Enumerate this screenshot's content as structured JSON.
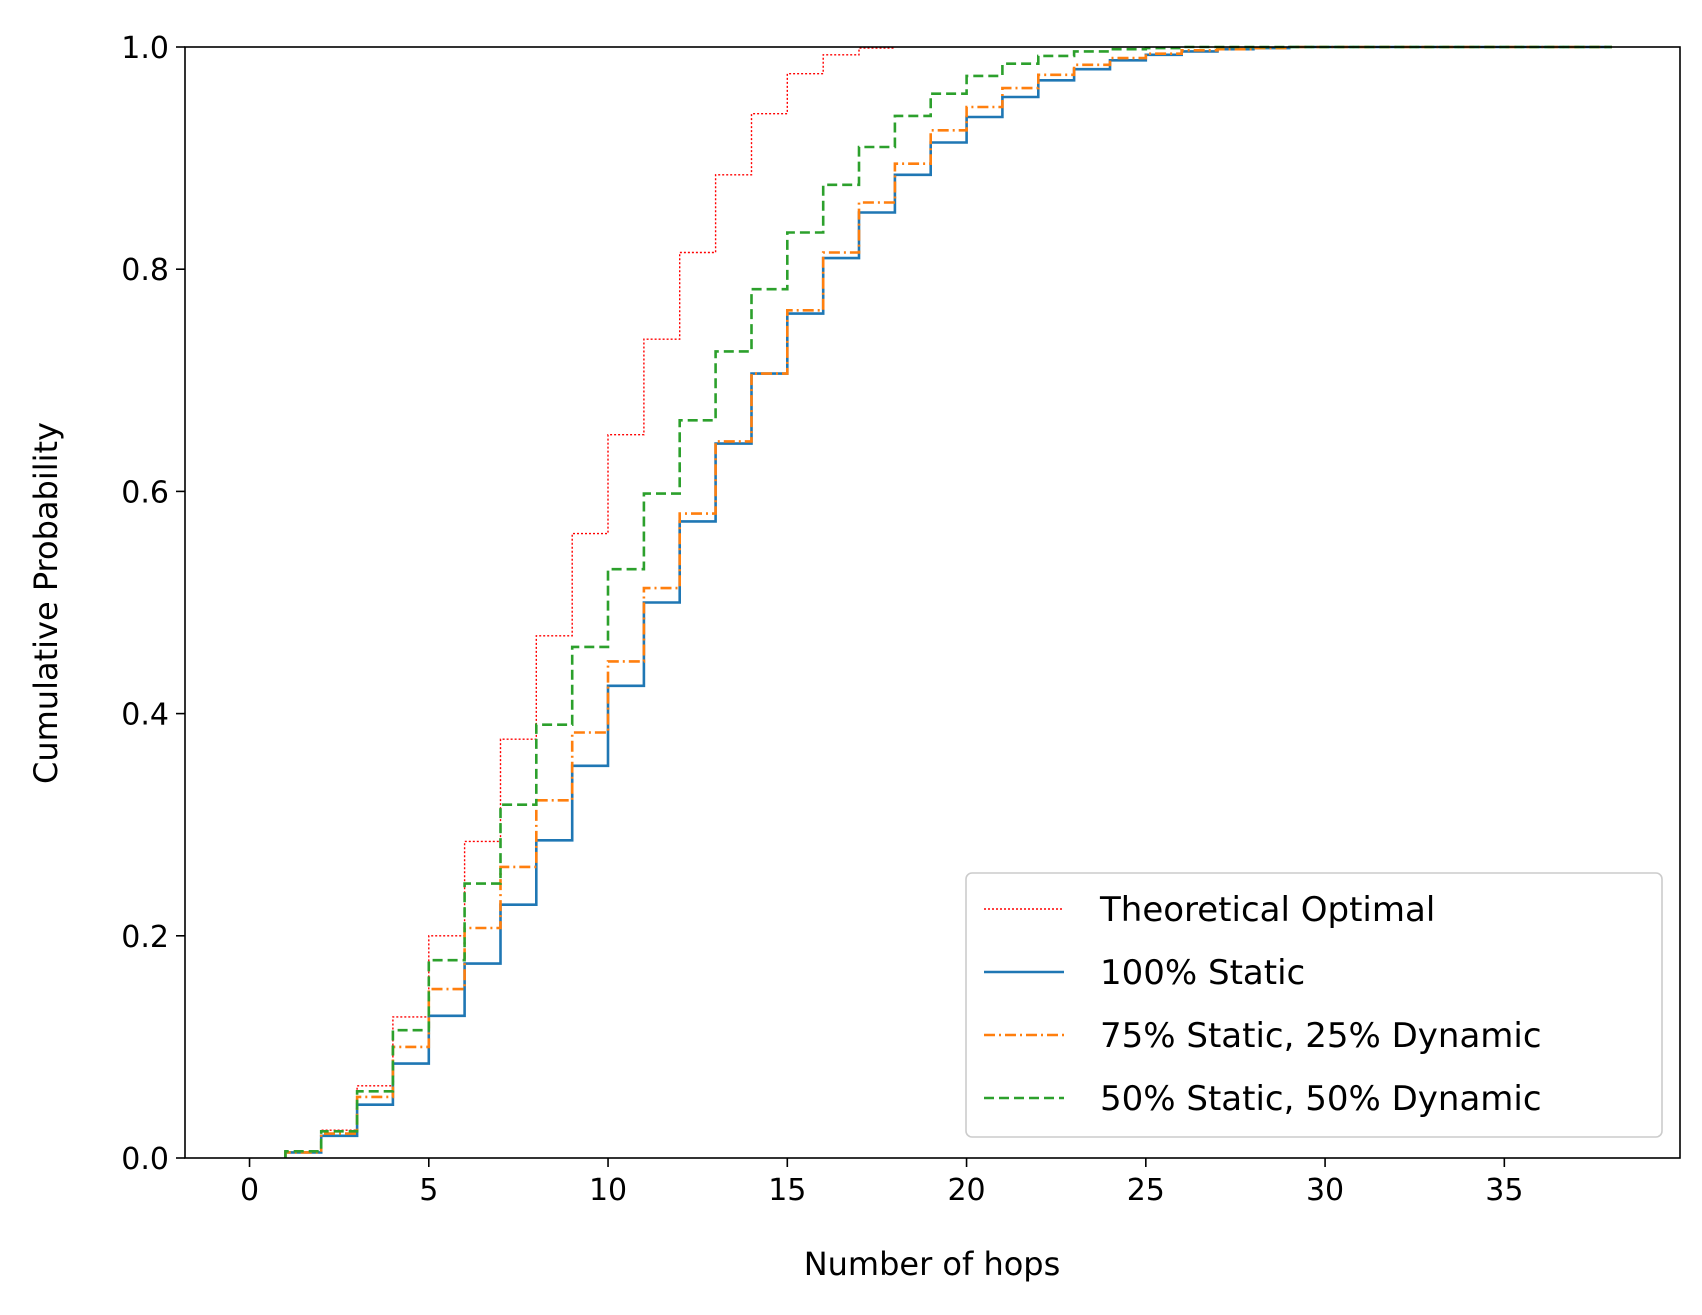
{
  "chart_data": {
    "type": "line",
    "step": true,
    "xlabel": "Number of hops",
    "ylabel": "Cumulative Probability",
    "xlim": [
      -1.8,
      39.9
    ],
    "ylim": [
      0.0,
      1.0
    ],
    "xticks": [
      0,
      5,
      10,
      15,
      20,
      25,
      30,
      35
    ],
    "yticks": [
      0.0,
      0.2,
      0.4,
      0.6,
      0.8,
      1.0
    ],
    "xtick_labels": [
      "0",
      "5",
      "10",
      "15",
      "20",
      "25",
      "30",
      "35"
    ],
    "ytick_labels": [
      "0.0",
      "0.2",
      "0.4",
      "0.6",
      "0.8",
      "1.0"
    ],
    "grid": false,
    "legend_position": "lower-right",
    "series": [
      {
        "name": "Theoretical Optimal",
        "color": "#ff0000",
        "linestyle": "dotted",
        "x": [
          1,
          2,
          3,
          4,
          5,
          6,
          7,
          8,
          9,
          10,
          11,
          12,
          13,
          14,
          15,
          16,
          17,
          18
        ],
        "y": [
          0.005,
          0.025,
          0.065,
          0.127,
          0.2,
          0.285,
          0.377,
          0.47,
          0.562,
          0.651,
          0.737,
          0.815,
          0.885,
          0.94,
          0.976,
          0.993,
          0.999,
          1.0
        ]
      },
      {
        "name": "100% Static",
        "color": "#1f77b4",
        "linestyle": "solid",
        "x": [
          1,
          2,
          3,
          4,
          5,
          6,
          7,
          8,
          9,
          10,
          11,
          12,
          13,
          14,
          15,
          16,
          17,
          18,
          19,
          20,
          21,
          22,
          23,
          24,
          25,
          26,
          27,
          28,
          29,
          30,
          38
        ],
        "y": [
          0.005,
          0.02,
          0.048,
          0.085,
          0.128,
          0.175,
          0.228,
          0.286,
          0.353,
          0.425,
          0.5,
          0.573,
          0.643,
          0.706,
          0.76,
          0.81,
          0.851,
          0.885,
          0.914,
          0.937,
          0.955,
          0.97,
          0.98,
          0.988,
          0.993,
          0.996,
          0.998,
          0.999,
          1.0,
          1.0,
          1.0
        ]
      },
      {
        "name": "75% Static, 25% Dynamic",
        "color": "#ff7f0e",
        "linestyle": "dashdot",
        "x": [
          1,
          2,
          3,
          4,
          5,
          6,
          7,
          8,
          9,
          10,
          11,
          12,
          13,
          14,
          15,
          16,
          17,
          18,
          19,
          20,
          21,
          22,
          23,
          24,
          25,
          26,
          27,
          28,
          29,
          30,
          38
        ],
        "y": [
          0.005,
          0.022,
          0.055,
          0.1,
          0.152,
          0.207,
          0.262,
          0.322,
          0.383,
          0.447,
          0.513,
          0.58,
          0.645,
          0.706,
          0.763,
          0.815,
          0.86,
          0.895,
          0.925,
          0.946,
          0.963,
          0.975,
          0.984,
          0.99,
          0.994,
          0.997,
          0.998,
          0.999,
          1.0,
          1.0,
          1.0
        ]
      },
      {
        "name": "50% Static, 50% Dynamic",
        "color": "#2ca02c",
        "linestyle": "dashed",
        "x": [
          1,
          2,
          3,
          4,
          5,
          6,
          7,
          8,
          9,
          10,
          11,
          12,
          13,
          14,
          15,
          16,
          17,
          18,
          19,
          20,
          21,
          22,
          23,
          24,
          25,
          26,
          27,
          38
        ],
        "y": [
          0.006,
          0.024,
          0.06,
          0.115,
          0.178,
          0.247,
          0.318,
          0.39,
          0.46,
          0.53,
          0.598,
          0.664,
          0.726,
          0.782,
          0.833,
          0.876,
          0.91,
          0.938,
          0.958,
          0.974,
          0.985,
          0.992,
          0.996,
          0.998,
          0.999,
          1.0,
          1.0,
          1.0
        ]
      }
    ]
  }
}
